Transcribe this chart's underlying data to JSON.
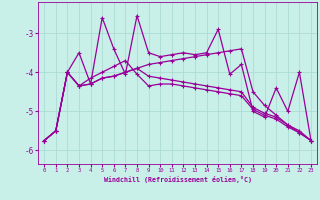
{
  "xlabel": "Windchill (Refroidissement éolien,°C)",
  "x": [
    0,
    1,
    2,
    3,
    4,
    5,
    6,
    7,
    8,
    9,
    10,
    11,
    12,
    13,
    14,
    15,
    16,
    17,
    18,
    19,
    20,
    21,
    22,
    23
  ],
  "series1": [
    -5.75,
    -5.5,
    -4.0,
    -3.5,
    -4.3,
    -2.6,
    -3.4,
    -4.05,
    -2.55,
    -3.5,
    -3.6,
    -3.55,
    -3.5,
    -3.55,
    -3.5,
    -2.9,
    -4.05,
    -3.8,
    -5.0,
    -5.15,
    -4.4,
    -5.0,
    -4.0,
    -5.75
  ],
  "series2": [
    -5.75,
    -5.5,
    -4.0,
    -4.35,
    -4.3,
    -4.15,
    -4.1,
    -4.0,
    -3.9,
    -3.8,
    -3.75,
    -3.7,
    -3.65,
    -3.6,
    -3.55,
    -3.5,
    -3.45,
    -3.4,
    -4.5,
    -4.85,
    -5.1,
    -5.35,
    -5.55,
    -5.75
  ],
  "series3": [
    -5.75,
    -5.5,
    -4.0,
    -4.35,
    -4.3,
    -4.15,
    -4.1,
    -4.0,
    -3.9,
    -4.1,
    -4.15,
    -4.2,
    -4.25,
    -4.3,
    -4.35,
    -4.4,
    -4.45,
    -4.5,
    -4.9,
    -5.05,
    -5.15,
    -5.35,
    -5.5,
    -5.75
  ],
  "series4": [
    -5.75,
    -5.5,
    -4.0,
    -4.35,
    -4.15,
    -4.0,
    -3.85,
    -3.7,
    -4.05,
    -4.35,
    -4.3,
    -4.3,
    -4.35,
    -4.4,
    -4.45,
    -4.5,
    -4.55,
    -4.6,
    -4.95,
    -5.1,
    -5.2,
    -5.4,
    -5.55,
    -5.75
  ],
  "line_color": "#990099",
  "marker": "+",
  "bg_color": "#c8f0e8",
  "grid_color": "#a8d8d0",
  "text_color": "#990099",
  "ylim": [
    -6.35,
    -2.2
  ],
  "xlim": [
    -0.5,
    23.5
  ],
  "yticks": [
    -6,
    -5,
    -4,
    -3
  ],
  "xticks": [
    0,
    1,
    2,
    3,
    4,
    5,
    6,
    7,
    8,
    9,
    10,
    11,
    12,
    13,
    14,
    15,
    16,
    17,
    18,
    19,
    20,
    21,
    22,
    23
  ]
}
